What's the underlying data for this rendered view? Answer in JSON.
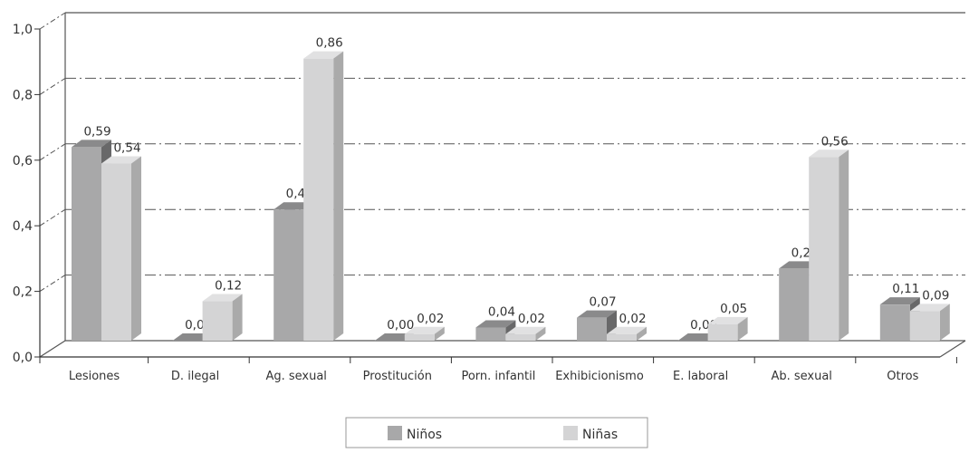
{
  "chart_data": {
    "type": "bar",
    "bar_style": "3d",
    "categories": [
      "Lesiones",
      "D. ilegal",
      "Ag. sexual",
      "Prostitución",
      "Porn. infantil",
      "Exhibicionismo",
      "E. laboral",
      "Ab. sexual",
      "Otros"
    ],
    "series": [
      {
        "name": "Niños",
        "values": [
          0.59,
          0.0,
          0.4,
          0.0,
          0.04,
          0.07,
          0.0,
          0.22,
          0.11
        ],
        "labels": [
          "0,59",
          "0,00",
          "0,40",
          "0,00",
          "0,04",
          "0,07",
          "0,00",
          "0,22",
          "0,11"
        ],
        "color": "#a8a8a9"
      },
      {
        "name": "Niñas",
        "values": [
          0.54,
          0.12,
          0.86,
          0.02,
          0.02,
          0.02,
          0.05,
          0.56,
          0.09
        ],
        "labels": [
          "0,54",
          "0,12",
          "0,86",
          "0,02",
          "0,02",
          "0,02",
          "0,05",
          "0,56",
          "0,09"
        ],
        "color": "#d4d4d5"
      }
    ],
    "ylim": [
      0,
      1.0
    ],
    "yticks": [
      {
        "value": 0.0,
        "label": "0,0"
      },
      {
        "value": 0.2,
        "label": "0,2"
      },
      {
        "value": 0.4,
        "label": "0,4"
      },
      {
        "value": 0.6,
        "label": "0,6"
      },
      {
        "value": 0.8,
        "label": "0,8"
      },
      {
        "value": 1.0,
        "label": "1,0"
      }
    ],
    "gridlines": "dash-dot",
    "legend_position": "bottom"
  }
}
